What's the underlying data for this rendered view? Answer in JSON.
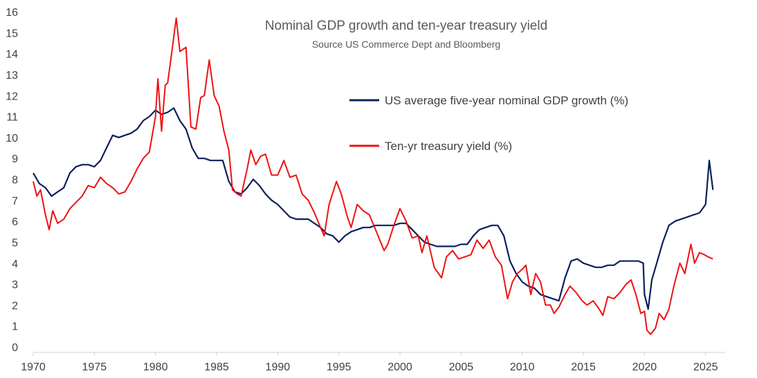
{
  "chart_data": {
    "type": "line",
    "title": "Nominal GDP growth and ten-year treasury yield",
    "subtitle": "Source US Commerce Dept and Bloomberg",
    "xlim": [
      1970,
      2026.6
    ],
    "ylim": [
      0,
      16
    ],
    "x_ticks": [
      "1970",
      "1975",
      "1980",
      "1985",
      "1990",
      "1995",
      "2000",
      "2005",
      "2010",
      "2015",
      "2020",
      "2025"
    ],
    "y_ticks": [
      "0",
      "1",
      "2",
      "3",
      "4",
      "5",
      "6",
      "7",
      "8",
      "9",
      "10",
      "11",
      "12",
      "13",
      "14",
      "15",
      "16"
    ],
    "grid": false,
    "legend_position": "upper-right",
    "series": [
      {
        "name": "US average five-year nominal GDP growth (%)",
        "color": "#0b1f5c",
        "points": [
          [
            1970.0,
            8.3
          ],
          [
            1970.5,
            7.8
          ],
          [
            1971.0,
            7.6
          ],
          [
            1971.5,
            7.2
          ],
          [
            1972.0,
            7.4
          ],
          [
            1972.5,
            7.6
          ],
          [
            1973.0,
            8.3
          ],
          [
            1973.5,
            8.6
          ],
          [
            1974.0,
            8.7
          ],
          [
            1974.5,
            8.7
          ],
          [
            1975.0,
            8.6
          ],
          [
            1975.5,
            8.9
          ],
          [
            1976.0,
            9.5
          ],
          [
            1976.5,
            10.1
          ],
          [
            1977.0,
            10.0
          ],
          [
            1977.5,
            10.1
          ],
          [
            1978.0,
            10.2
          ],
          [
            1978.5,
            10.4
          ],
          [
            1979.0,
            10.8
          ],
          [
            1979.5,
            11.0
          ],
          [
            1980.0,
            11.3
          ],
          [
            1980.5,
            11.1
          ],
          [
            1981.0,
            11.2
          ],
          [
            1981.5,
            11.4
          ],
          [
            1982.0,
            10.8
          ],
          [
            1982.5,
            10.4
          ],
          [
            1983.0,
            9.5
          ],
          [
            1983.5,
            9.0
          ],
          [
            1984.0,
            9.0
          ],
          [
            1984.5,
            8.9
          ],
          [
            1985.0,
            8.9
          ],
          [
            1985.5,
            8.9
          ],
          [
            1986.0,
            7.9
          ],
          [
            1986.5,
            7.4
          ],
          [
            1987.0,
            7.3
          ],
          [
            1987.5,
            7.6
          ],
          [
            1988.0,
            8.0
          ],
          [
            1988.5,
            7.7
          ],
          [
            1989.0,
            7.3
          ],
          [
            1989.5,
            7.0
          ],
          [
            1990.0,
            6.8
          ],
          [
            1990.5,
            6.5
          ],
          [
            1991.0,
            6.2
          ],
          [
            1991.5,
            6.1
          ],
          [
            1992.0,
            6.1
          ],
          [
            1992.5,
            6.1
          ],
          [
            1993.0,
            5.9
          ],
          [
            1993.5,
            5.7
          ],
          [
            1994.0,
            5.4
          ],
          [
            1994.5,
            5.3
          ],
          [
            1995.0,
            5.0
          ],
          [
            1995.5,
            5.3
          ],
          [
            1996.0,
            5.5
          ],
          [
            1996.5,
            5.6
          ],
          [
            1997.0,
            5.7
          ],
          [
            1997.5,
            5.7
          ],
          [
            1998.0,
            5.8
          ],
          [
            1998.5,
            5.8
          ],
          [
            1999.0,
            5.8
          ],
          [
            1999.5,
            5.8
          ],
          [
            2000.0,
            5.9
          ],
          [
            2000.5,
            5.9
          ],
          [
            2001.0,
            5.6
          ],
          [
            2001.5,
            5.3
          ],
          [
            2002.0,
            5.0
          ],
          [
            2002.5,
            4.9
          ],
          [
            2003.0,
            4.8
          ],
          [
            2003.5,
            4.8
          ],
          [
            2004.0,
            4.8
          ],
          [
            2004.5,
            4.8
          ],
          [
            2005.0,
            4.9
          ],
          [
            2005.5,
            4.9
          ],
          [
            2006.0,
            5.3
          ],
          [
            2006.5,
            5.6
          ],
          [
            2007.0,
            5.7
          ],
          [
            2007.5,
            5.8
          ],
          [
            2008.0,
            5.8
          ],
          [
            2008.5,
            5.3
          ],
          [
            2009.0,
            4.1
          ],
          [
            2009.5,
            3.5
          ],
          [
            2010.0,
            3.1
          ],
          [
            2010.5,
            2.9
          ],
          [
            2011.0,
            2.8
          ],
          [
            2011.5,
            2.5
          ],
          [
            2012.0,
            2.4
          ],
          [
            2012.5,
            2.3
          ],
          [
            2013.0,
            2.2
          ],
          [
            2013.5,
            3.3
          ],
          [
            2014.0,
            4.1
          ],
          [
            2014.5,
            4.2
          ],
          [
            2015.0,
            4.0
          ],
          [
            2015.5,
            3.9
          ],
          [
            2016.0,
            3.8
          ],
          [
            2016.5,
            3.8
          ],
          [
            2017.0,
            3.9
          ],
          [
            2017.5,
            3.9
          ],
          [
            2018.0,
            4.1
          ],
          [
            2018.5,
            4.1
          ],
          [
            2019.0,
            4.1
          ],
          [
            2019.5,
            4.1
          ],
          [
            2019.9,
            4.0
          ],
          [
            2020.0,
            2.5
          ],
          [
            2020.3,
            1.8
          ],
          [
            2020.6,
            3.2
          ],
          [
            2021.0,
            4.0
          ],
          [
            2021.5,
            5.0
          ],
          [
            2022.0,
            5.8
          ],
          [
            2022.5,
            6.0
          ],
          [
            2023.0,
            6.1
          ],
          [
            2023.5,
            6.2
          ],
          [
            2024.0,
            6.3
          ],
          [
            2024.5,
            6.4
          ],
          [
            2025.0,
            6.8
          ],
          [
            2025.3,
            8.9
          ],
          [
            2025.6,
            7.5
          ]
        ]
      },
      {
        "name": "Ten-yr treasury yield (%)",
        "color": "#ee1111",
        "points": [
          [
            1970.0,
            7.9
          ],
          [
            1970.3,
            7.2
          ],
          [
            1970.6,
            7.5
          ],
          [
            1971.0,
            6.3
          ],
          [
            1971.3,
            5.6
          ],
          [
            1971.6,
            6.5
          ],
          [
            1972.0,
            5.9
          ],
          [
            1972.5,
            6.1
          ],
          [
            1973.0,
            6.6
          ],
          [
            1973.5,
            6.9
          ],
          [
            1974.0,
            7.2
          ],
          [
            1974.5,
            7.7
          ],
          [
            1975.0,
            7.6
          ],
          [
            1975.5,
            8.1
          ],
          [
            1976.0,
            7.8
          ],
          [
            1976.5,
            7.6
          ],
          [
            1977.0,
            7.3
          ],
          [
            1977.5,
            7.4
          ],
          [
            1978.0,
            7.9
          ],
          [
            1978.5,
            8.5
          ],
          [
            1979.0,
            9.0
          ],
          [
            1979.5,
            9.3
          ],
          [
            1980.0,
            11.0
          ],
          [
            1980.2,
            12.8
          ],
          [
            1980.5,
            10.3
          ],
          [
            1980.8,
            12.5
          ],
          [
            1981.0,
            12.6
          ],
          [
            1981.3,
            13.9
          ],
          [
            1981.7,
            15.7
          ],
          [
            1982.0,
            14.1
          ],
          [
            1982.5,
            14.3
          ],
          [
            1982.9,
            10.5
          ],
          [
            1983.3,
            10.4
          ],
          [
            1983.7,
            11.9
          ],
          [
            1984.0,
            12.0
          ],
          [
            1984.4,
            13.7
          ],
          [
            1984.8,
            12.0
          ],
          [
            1985.2,
            11.5
          ],
          [
            1985.6,
            10.3
          ],
          [
            1986.0,
            9.4
          ],
          [
            1986.3,
            7.5
          ],
          [
            1986.7,
            7.3
          ],
          [
            1987.0,
            7.2
          ],
          [
            1987.5,
            8.5
          ],
          [
            1987.8,
            9.4
          ],
          [
            1988.2,
            8.7
          ],
          [
            1988.6,
            9.1
          ],
          [
            1989.0,
            9.2
          ],
          [
            1989.5,
            8.2
          ],
          [
            1990.0,
            8.2
          ],
          [
            1990.5,
            8.9
          ],
          [
            1991.0,
            8.1
          ],
          [
            1991.5,
            8.2
          ],
          [
            1992.0,
            7.3
          ],
          [
            1992.5,
            7.0
          ],
          [
            1993.0,
            6.4
          ],
          [
            1993.5,
            5.7
          ],
          [
            1993.8,
            5.3
          ],
          [
            1994.2,
            6.8
          ],
          [
            1994.8,
            7.9
          ],
          [
            1995.2,
            7.3
          ],
          [
            1995.7,
            6.2
          ],
          [
            1996.0,
            5.7
          ],
          [
            1996.5,
            6.8
          ],
          [
            1997.0,
            6.5
          ],
          [
            1997.5,
            6.3
          ],
          [
            1998.0,
            5.6
          ],
          [
            1998.7,
            4.6
          ],
          [
            1999.0,
            4.9
          ],
          [
            1999.5,
            5.8
          ],
          [
            2000.0,
            6.6
          ],
          [
            2000.5,
            6.0
          ],
          [
            2001.0,
            5.2
          ],
          [
            2001.5,
            5.3
          ],
          [
            2001.8,
            4.5
          ],
          [
            2002.2,
            5.3
          ],
          [
            2002.8,
            3.8
          ],
          [
            2003.4,
            3.3
          ],
          [
            2003.8,
            4.3
          ],
          [
            2004.3,
            4.6
          ],
          [
            2004.8,
            4.2
          ],
          [
            2005.3,
            4.3
          ],
          [
            2005.8,
            4.4
          ],
          [
            2006.3,
            5.1
          ],
          [
            2006.8,
            4.7
          ],
          [
            2007.3,
            5.1
          ],
          [
            2007.8,
            4.3
          ],
          [
            2008.3,
            3.9
          ],
          [
            2008.8,
            2.3
          ],
          [
            2009.2,
            3.1
          ],
          [
            2009.6,
            3.5
          ],
          [
            2010.0,
            3.7
          ],
          [
            2010.3,
            3.9
          ],
          [
            2010.7,
            2.5
          ],
          [
            2011.1,
            3.5
          ],
          [
            2011.5,
            3.1
          ],
          [
            2011.9,
            2.0
          ],
          [
            2012.3,
            2.0
          ],
          [
            2012.6,
            1.6
          ],
          [
            2013.0,
            1.9
          ],
          [
            2013.5,
            2.5
          ],
          [
            2013.9,
            2.9
          ],
          [
            2014.4,
            2.6
          ],
          [
            2014.9,
            2.2
          ],
          [
            2015.3,
            2.0
          ],
          [
            2015.8,
            2.2
          ],
          [
            2016.3,
            1.8
          ],
          [
            2016.6,
            1.5
          ],
          [
            2017.0,
            2.4
          ],
          [
            2017.5,
            2.3
          ],
          [
            2018.0,
            2.6
          ],
          [
            2018.5,
            3.0
          ],
          [
            2018.9,
            3.2
          ],
          [
            2019.3,
            2.5
          ],
          [
            2019.7,
            1.6
          ],
          [
            2020.0,
            1.7
          ],
          [
            2020.2,
            0.8
          ],
          [
            2020.5,
            0.6
          ],
          [
            2020.9,
            0.9
          ],
          [
            2021.2,
            1.6
          ],
          [
            2021.6,
            1.3
          ],
          [
            2022.0,
            1.8
          ],
          [
            2022.4,
            2.9
          ],
          [
            2022.9,
            4.0
          ],
          [
            2023.3,
            3.5
          ],
          [
            2023.8,
            4.9
          ],
          [
            2024.1,
            4.0
          ],
          [
            2024.5,
            4.5
          ],
          [
            2024.9,
            4.4
          ],
          [
            2025.2,
            4.3
          ],
          [
            2025.6,
            4.2
          ]
        ]
      }
    ]
  }
}
